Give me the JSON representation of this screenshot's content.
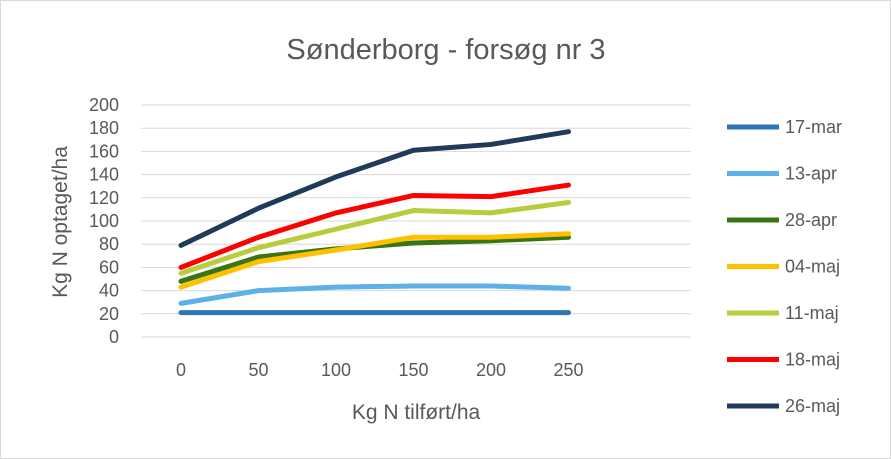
{
  "chart_data": {
    "type": "line",
    "title": "Sønderborg  - forsøg nr 3",
    "xlabel": "Kg N tilført/ha",
    "ylabel": "Kg N optaget/ha",
    "x": [
      "0",
      "50",
      "100",
      "150",
      "200",
      "250"
    ],
    "yticks": [
      "0",
      "20",
      "40",
      "60",
      "80",
      "100",
      "120",
      "140",
      "160",
      "180",
      "200"
    ],
    "ylim": [
      0,
      200
    ],
    "grid": true,
    "legend_position": "right",
    "series": [
      {
        "name": "17-mar",
        "color": "#2E75B6",
        "values": [
          21,
          21,
          21,
          21,
          21,
          21
        ]
      },
      {
        "name": "13-apr",
        "color": "#5DB0E8",
        "values": [
          29,
          40,
          43,
          44,
          44,
          42
        ]
      },
      {
        "name": "28-apr",
        "color": "#3A7513",
        "values": [
          48,
          69,
          76,
          81,
          83,
          86
        ]
      },
      {
        "name": "04-maj",
        "color": "#FFC000",
        "values": [
          43,
          65,
          75,
          86,
          86,
          89
        ]
      },
      {
        "name": "11-maj",
        "color": "#BACB3C",
        "values": [
          55,
          77,
          93,
          109,
          107,
          116
        ]
      },
      {
        "name": "18-maj",
        "color": "#FF0000",
        "values": [
          60,
          86,
          107,
          122,
          121,
          131
        ]
      },
      {
        "name": "26-maj",
        "color": "#1F3A5A",
        "values": [
          79,
          111,
          138,
          161,
          166,
          177
        ]
      }
    ]
  }
}
